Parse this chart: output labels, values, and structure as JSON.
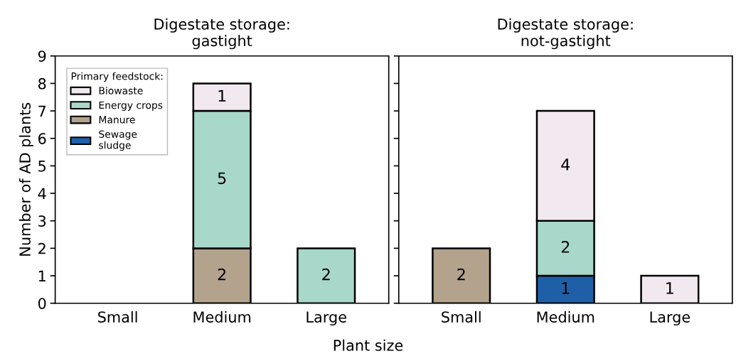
{
  "chart_data": [
    {
      "type": "bar",
      "title": "Digestate storage:\ngastight",
      "xlabel": "Plant size",
      "ylabel": "Number of AD plants",
      "categories": [
        "Small",
        "Medium",
        "Large"
      ],
      "stacked": true,
      "data_labels": true,
      "ylim": [
        0,
        9
      ],
      "yticks": [
        0,
        1,
        2,
        3,
        4,
        5,
        6,
        7,
        8,
        9
      ],
      "legend": "top left",
      "legend_title": "Primary feedstock:",
      "series": [
        {
          "name": "Sewage\nsludge",
          "color": "#1f5fa8",
          "values": [
            null,
            null,
            null
          ]
        },
        {
          "name": "Manure",
          "color": "#b3a38d",
          "values": [
            null,
            2,
            null
          ]
        },
        {
          "name": "Energy crops",
          "color": "#a8d8c9",
          "values": [
            null,
            5,
            2
          ]
        },
        {
          "name": "Biowaste",
          "color": "#f1e9ef",
          "values": [
            null,
            1,
            null
          ]
        }
      ]
    },
    {
      "type": "bar",
      "title": "Digestate storage:\nnot-gastight",
      "categories": [
        "Small",
        "Medium",
        "Large"
      ],
      "stacked": true,
      "data_labels": true,
      "ylim": [
        0,
        9
      ],
      "yticks": [
        0,
        1,
        2,
        3,
        4,
        5,
        6,
        7,
        8,
        9
      ],
      "tick_labels": "x",
      "series": [
        {
          "color": "#1f5fa8",
          "values": [
            null,
            1,
            null
          ]
        },
        {
          "color": "#b3a38d",
          "values": [
            2,
            null,
            null
          ]
        },
        {
          "color": "#a8d8c9",
          "values": [
            null,
            2,
            null
          ]
        },
        {
          "color": "#f1e9ef",
          "values": [
            null,
            4,
            1
          ]
        }
      ]
    }
  ]
}
